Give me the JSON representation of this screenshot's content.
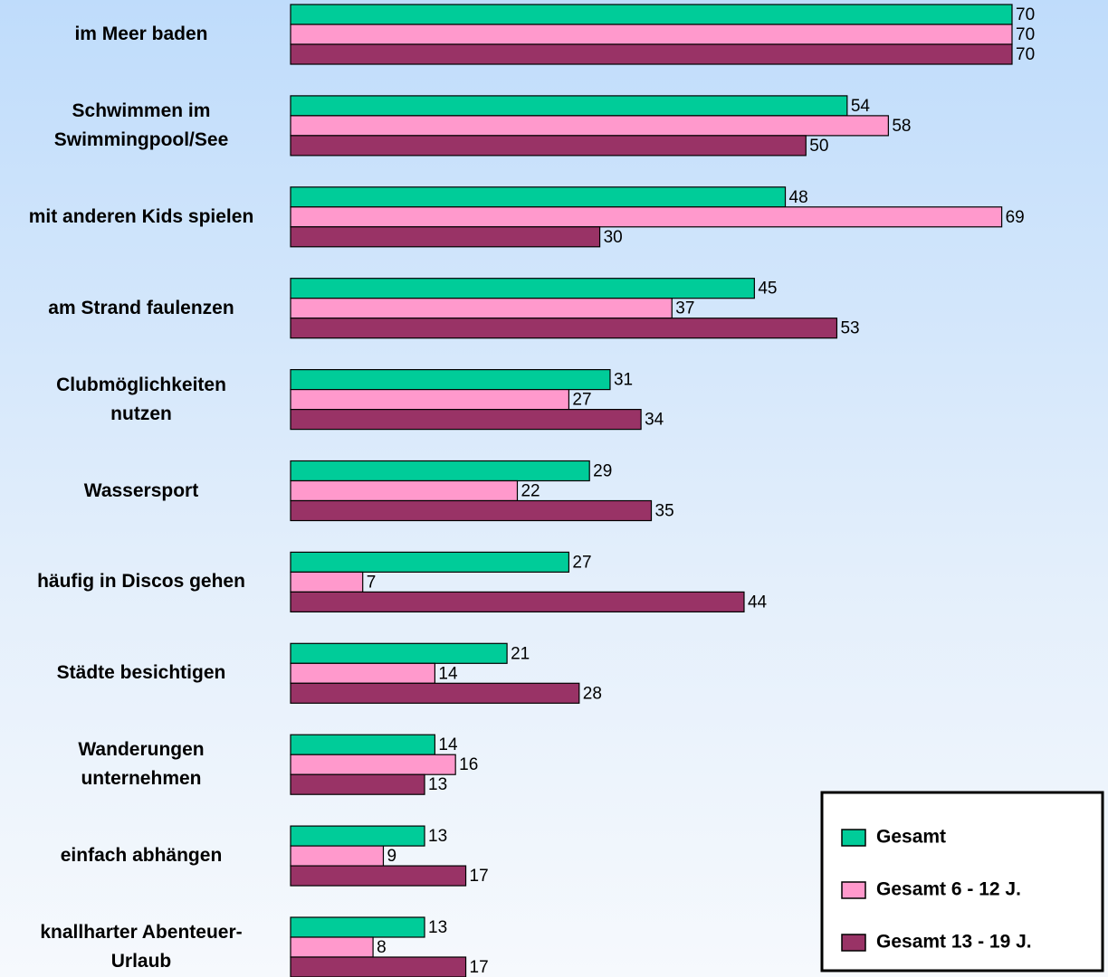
{
  "chart_data": {
    "type": "hbar",
    "categories": [
      "im Meer baden",
      "Schwimmen im\nSwimmingpool/See",
      "mit anderen Kids spielen",
      "am Strand faulenzen",
      "Clubmöglichkeiten\nnutzen",
      "Wassersport",
      "häufig in Discos gehen",
      "Städte besichtigen",
      "Wanderungen\nunternehmen",
      "einfach abhängen",
      "knallharter Abenteuer-\nUrlaub"
    ],
    "series": [
      {
        "name": "Gesamt",
        "color": "#00cc99",
        "values": [
          70,
          54,
          48,
          45,
          31,
          29,
          27,
          21,
          14,
          13,
          13
        ]
      },
      {
        "name": "Gesamt 6 - 12 J.",
        "color": "#ff99cc",
        "values": [
          70,
          58,
          69,
          37,
          27,
          22,
          7,
          14,
          16,
          9,
          8
        ]
      },
      {
        "name": "Gesamt 13 - 19 J.",
        "color": "#993366",
        "values": [
          70,
          50,
          30,
          53,
          34,
          35,
          44,
          28,
          13,
          17,
          17
        ]
      }
    ],
    "xlim": [
      0,
      70
    ],
    "legend": "lower right"
  }
}
